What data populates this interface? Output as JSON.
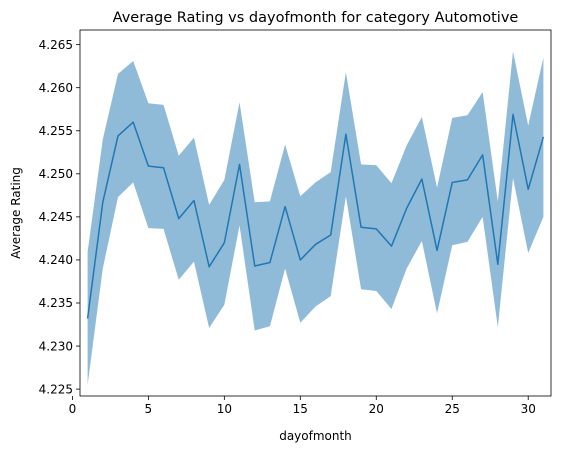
{
  "chart_data": {
    "type": "line",
    "title": "Average Rating vs dayofmonth for category Automotive",
    "xlabel": "dayofmonth",
    "ylabel": "Average Rating",
    "xlim": [
      0.5,
      31.5
    ],
    "ylim": [
      4.2242,
      4.2667
    ],
    "xticks": [
      0,
      5,
      10,
      15,
      20,
      25,
      30
    ],
    "yticks": [
      4.225,
      4.23,
      4.235,
      4.24,
      4.245,
      4.25,
      4.255,
      4.26,
      4.265
    ],
    "grid": false,
    "colors": {
      "line": "#1f77b4",
      "band": "#1f77b4"
    },
    "series": [
      {
        "x": [
          1,
          2,
          3,
          4,
          5,
          6,
          7,
          8,
          9,
          10,
          11,
          12,
          13,
          14,
          15,
          16,
          17,
          18,
          19,
          20,
          21,
          22,
          23,
          24,
          25,
          26,
          27,
          28,
          29,
          30,
          31
        ],
        "values": [
          4.2332,
          4.2467,
          4.2544,
          4.256,
          4.2509,
          4.2507,
          4.2448,
          4.2469,
          4.2392,
          4.242,
          4.2511,
          4.2393,
          4.2397,
          4.2462,
          4.24,
          4.2418,
          4.2429,
          4.2546,
          4.2438,
          4.2436,
          4.2416,
          4.246,
          4.2494,
          4.2411,
          4.249,
          4.2493,
          4.2522,
          4.2395,
          4.2569,
          4.2482,
          4.2543
        ],
        "lower": [
          4.2255,
          4.239,
          4.2473,
          4.249,
          4.2437,
          4.2436,
          4.2377,
          4.2398,
          4.2321,
          4.2348,
          4.244,
          4.2318,
          4.2323,
          4.239,
          4.2327,
          4.2346,
          4.2358,
          4.2474,
          4.2366,
          4.2364,
          4.2343,
          4.239,
          4.2422,
          4.2338,
          4.2417,
          4.2421,
          4.245,
          4.2322,
          4.2495,
          4.2408,
          4.245
        ],
        "upper": [
          4.2409,
          4.254,
          4.2616,
          4.2631,
          4.2582,
          4.258,
          4.2521,
          4.2542,
          4.2464,
          4.2493,
          4.2583,
          4.2467,
          4.2468,
          4.2534,
          4.2474,
          4.249,
          4.2502,
          4.2618,
          4.2511,
          4.251,
          4.2489,
          4.2533,
          4.2566,
          4.2484,
          4.2565,
          4.2568,
          4.2595,
          4.2468,
          4.2642,
          4.2556,
          4.2635
        ]
      }
    ]
  }
}
